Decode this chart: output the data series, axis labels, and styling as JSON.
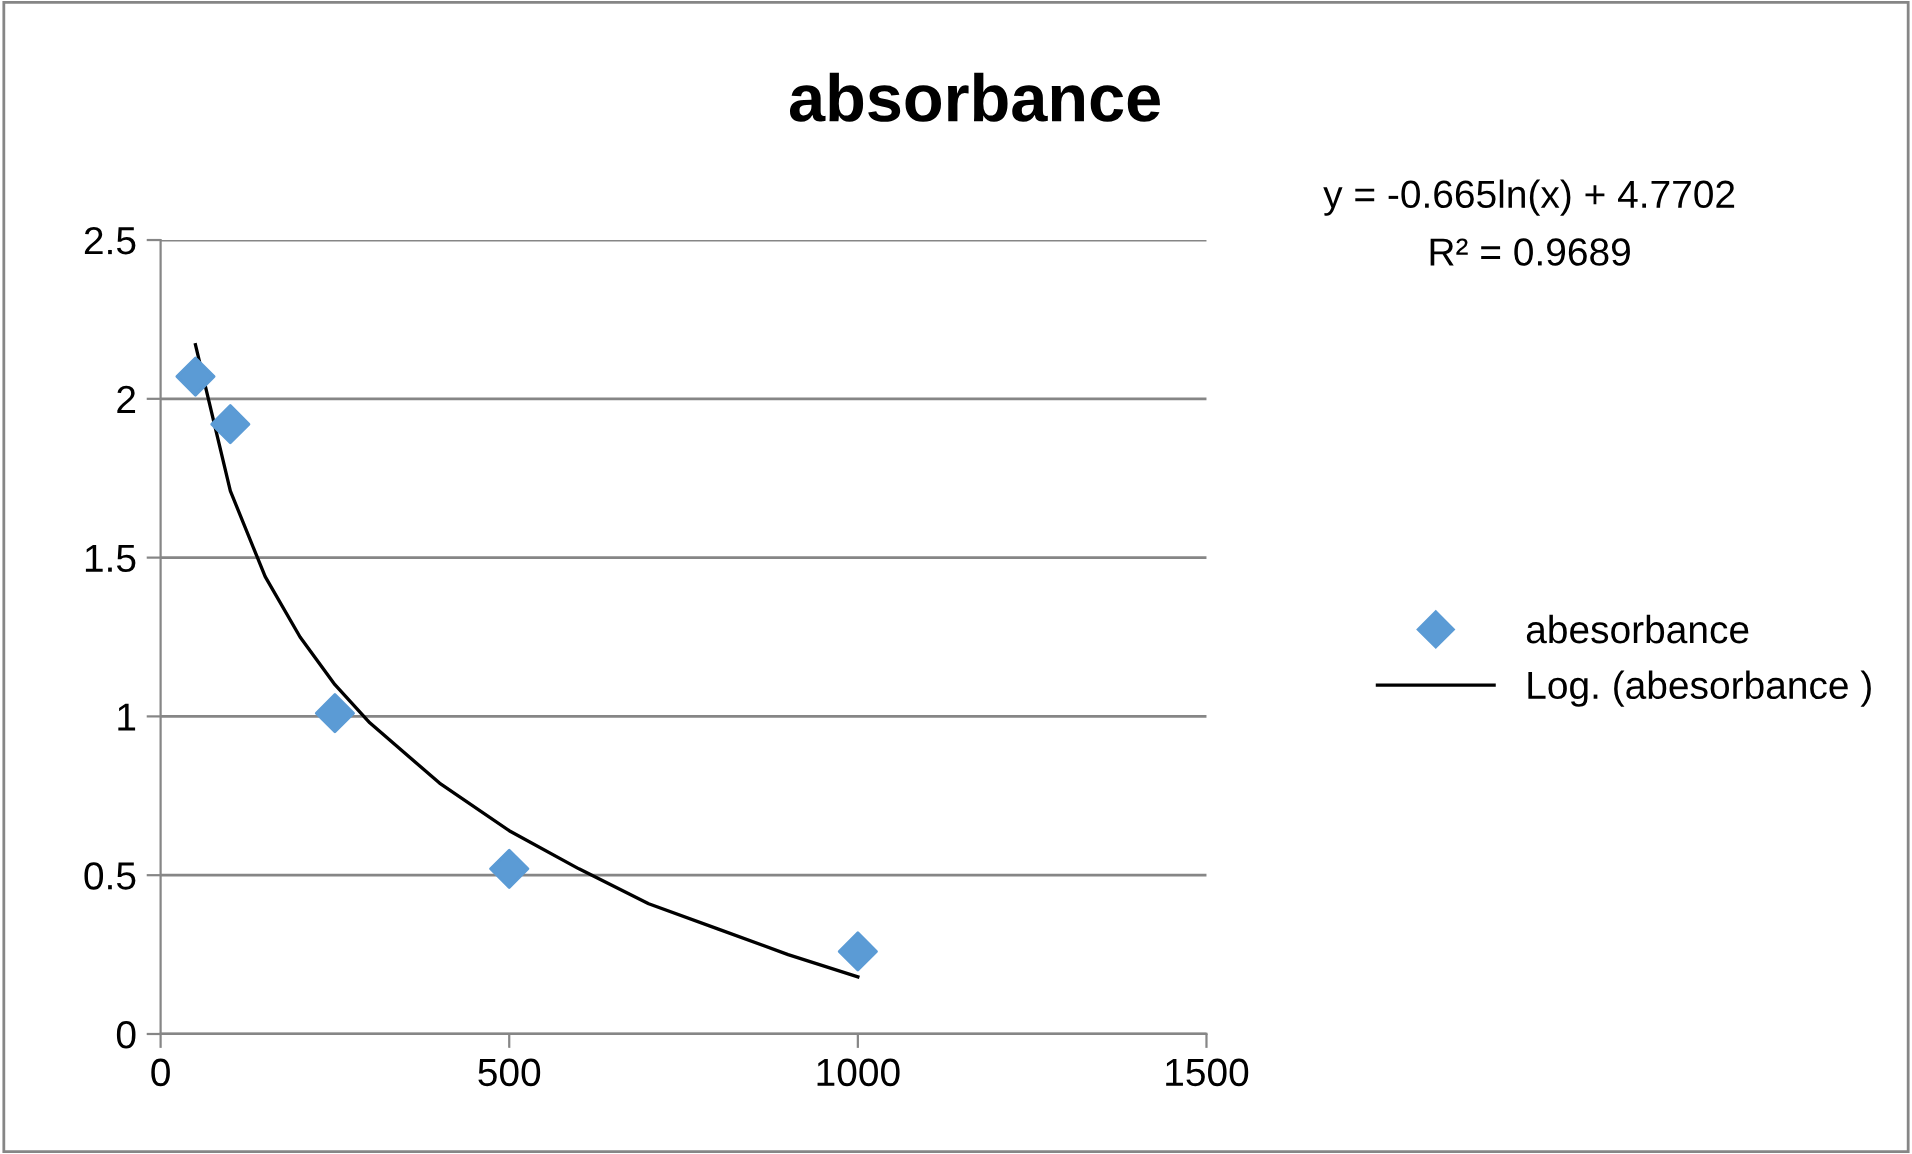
{
  "chart_data": {
    "type": "scatter",
    "title": "absorbance",
    "series": [
      {
        "name": "abesorbance",
        "color": "#5b9bd5",
        "marker": "diamond",
        "x": [
          50,
          100,
          250,
          500,
          1000
        ],
        "values": [
          2.07,
          1.92,
          1.01,
          0.52,
          0.26
        ]
      },
      {
        "name": "Log. (abesorbance )",
        "type": "line",
        "color": "#000000",
        "marker": "none",
        "line_style": "solid",
        "x": [
          50,
          100,
          150,
          200,
          250,
          300,
          400,
          500,
          600,
          700,
          800,
          900,
          1000
        ],
        "values": [
          2.17,
          1.71,
          1.44,
          1.25,
          1.1,
          0.98,
          0.79,
          0.64,
          0.52,
          0.41,
          0.33,
          0.25,
          0.18
        ]
      }
    ],
    "xlim": [
      0,
      1500
    ],
    "xticks": [
      0,
      500,
      1000,
      1500
    ],
    "ylim": [
      0,
      2.5
    ],
    "yticks": [
      0,
      0.5,
      1,
      1.5,
      2,
      2.5
    ],
    "grid": "y",
    "legend": "right",
    "annotations": [
      "y = -0.665ln(x) + 4.7702",
      "R² = 0.9689"
    ]
  }
}
